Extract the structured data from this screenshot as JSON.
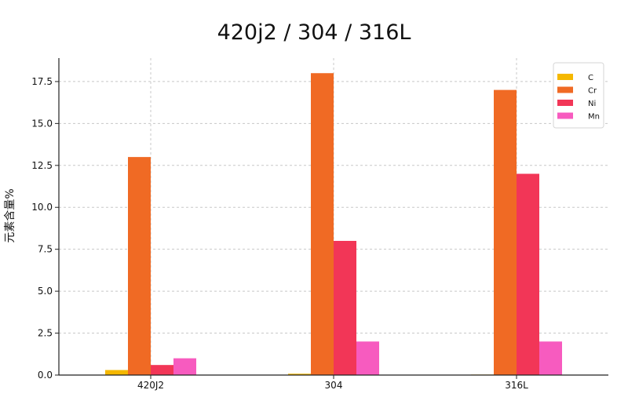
{
  "chart_data": {
    "type": "bar",
    "title": "420j2 / 304 / 316L",
    "xlabel": "",
    "ylabel": "元素含量%",
    "categories": [
      "420J2",
      "304",
      "316L"
    ],
    "series": [
      {
        "name": "C",
        "color": "#F5B800",
        "values": [
          0.3,
          0.08,
          0.03
        ]
      },
      {
        "name": "Cr",
        "color": "#F06A24",
        "values": [
          13,
          18,
          17
        ]
      },
      {
        "name": "Ni",
        "color": "#F23657",
        "values": [
          0.6,
          8,
          12
        ]
      },
      {
        "name": "Mn",
        "color": "#F75BBF",
        "values": [
          1,
          2,
          2
        ]
      }
    ],
    "ylim": [
      0,
      18.9
    ],
    "yticks": [
      "0.0",
      "2.5",
      "5.0",
      "7.5",
      "10.0",
      "12.5",
      "15.0",
      "17.5"
    ],
    "grid": true,
    "legend_position": "top-right"
  }
}
